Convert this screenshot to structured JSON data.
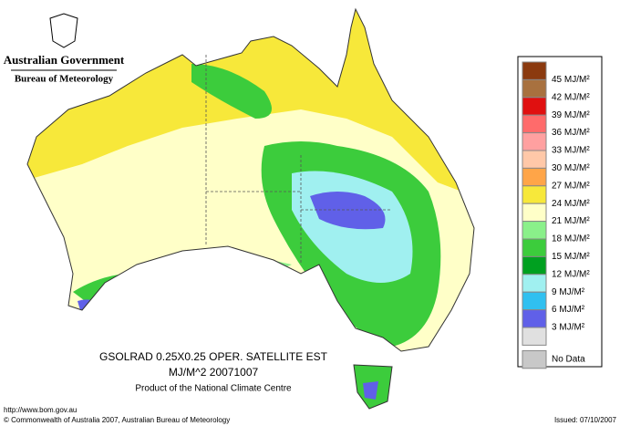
{
  "header": {
    "title": "Australian Government",
    "subtitle": "Bureau of Meteorology"
  },
  "legend": {
    "top_color": "#8b3a0f",
    "items": [
      {
        "label": "45 MJ/M²",
        "color": "#a8713f"
      },
      {
        "label": "42 MJ/M²",
        "color": "#e01010"
      },
      {
        "label": "39 MJ/M²",
        "color": "#ff6b6b"
      },
      {
        "label": "36 MJ/M²",
        "color": "#ffa0a0"
      },
      {
        "label": "33 MJ/M²",
        "color": "#ffc8a8"
      },
      {
        "label": "30 MJ/M²",
        "color": "#ffa548"
      },
      {
        "label": "27 MJ/M²",
        "color": "#f7e83a"
      },
      {
        "label": "24 MJ/M²",
        "color": "#ffffc8"
      },
      {
        "label": "21 MJ/M²",
        "color": "#8af08a"
      },
      {
        "label": "18 MJ/M²",
        "color": "#3ccc3c"
      },
      {
        "label": "15 MJ/M²",
        "color": "#00a020"
      },
      {
        "label": "12 MJ/M²",
        "color": "#a0f0f0"
      },
      {
        "label": "9 MJ/M²",
        "color": "#30c0f0"
      },
      {
        "label": "6 MJ/M²",
        "color": "#6060e8"
      },
      {
        "label": "3 MJ/M²",
        "color": "#e0e0e0"
      },
      {
        "label": "No Data",
        "color": "#c8c8c8"
      }
    ]
  },
  "footer": {
    "line1": "GSOLRAD    0.25X0.25 OPER. SATELLITE EST",
    "line2": "MJ/M^2   20071007",
    "line3": "Product of the National Climate Centre",
    "url": "http://www.bom.gov.au",
    "copyright": "© Commonwealth of Australia 2007, Australian Bureau of Meteorology",
    "issued": "Issued: 07/10/2007"
  }
}
